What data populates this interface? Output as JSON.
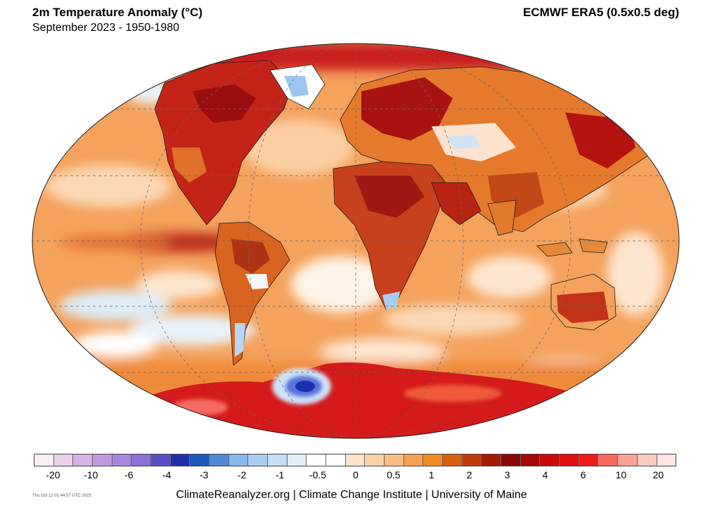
{
  "header": {
    "title": "2m Temperature Anomaly (°C)",
    "subtitle": "September 2023 - 1950-1980",
    "source": "ECMWF ERA5 (0.5x0.5 deg)"
  },
  "map": {
    "projection": "Robinson-like elliptical world map",
    "colors": {
      "ocean_warm": "#f6a25a",
      "ocean_mild": "#fbd3ad",
      "neutral": "#ffffff",
      "cool": "#b9d9f2",
      "cold": "#2a46c8",
      "hot": "#c81e1e",
      "very_hot": "#8e0c0c",
      "land_outline": "#1a1a1a",
      "grid": "#777777"
    }
  },
  "legend": {
    "swatches": [
      "#fbeff6",
      "#ead0ea",
      "#d6b2e6",
      "#c09be2",
      "#a786de",
      "#8c6fd8",
      "#5a4dc4",
      "#232fa8",
      "#1e58b8",
      "#4f89d6",
      "#86b8ea",
      "#a8cdf1",
      "#c5def6",
      "#e2eff9",
      "#ffffff",
      "#ffffff",
      "#fce4cc",
      "#fbd2a8",
      "#f8bd80",
      "#f6a250",
      "#f08a26",
      "#d85f0e",
      "#c03b0a",
      "#a61a0a",
      "#8a0606",
      "#a80808",
      "#c80c0c",
      "#e01010",
      "#f21818",
      "#f66a5e",
      "#f9a396",
      "#fbcbc2",
      "#fde7e3"
    ],
    "ticks": [
      {
        "label": "-20",
        "pos": 0.03
      },
      {
        "label": "-10",
        "pos": 0.089
      },
      {
        "label": "-6",
        "pos": 0.148
      },
      {
        "label": "-4",
        "pos": 0.207
      },
      {
        "label": "-3",
        "pos": 0.265
      },
      {
        "label": "-2",
        "pos": 0.324
      },
      {
        "label": "-1",
        "pos": 0.383
      },
      {
        "label": "-0.5",
        "pos": 0.442
      },
      {
        "label": "0",
        "pos": 0.501
      },
      {
        "label": "0.5",
        "pos": 0.56
      },
      {
        "label": "1",
        "pos": 0.619
      },
      {
        "label": "2",
        "pos": 0.678
      },
      {
        "label": "3",
        "pos": 0.737
      },
      {
        "label": "4",
        "pos": 0.796
      },
      {
        "label": "6",
        "pos": 0.855
      },
      {
        "label": "10",
        "pos": 0.914
      },
      {
        "label": "20",
        "pos": 0.972
      }
    ]
  },
  "footer": {
    "timestamp": "Thu Oct 12 01:44:57 UTC 2023",
    "credit": "ClimateReanalyzer.org | Climate Change Institute | University of Maine"
  }
}
